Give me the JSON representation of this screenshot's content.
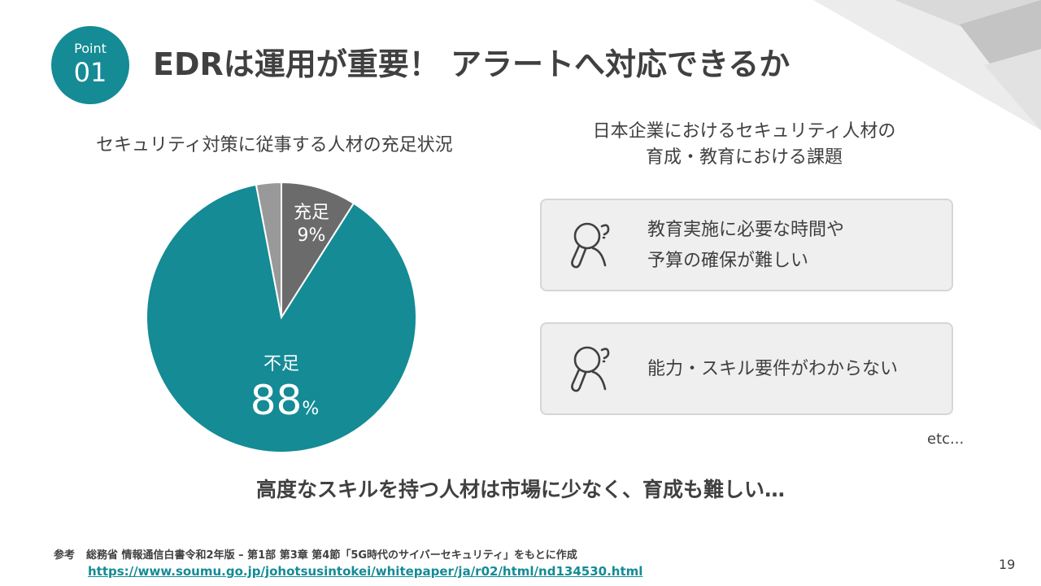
{
  "badge": {
    "label": "Point",
    "number": "01"
  },
  "title": "EDRは運用が重要！ アラートへ対応できるか",
  "chart": {
    "title": "セキュリティ対策に従事する人材の充足状況"
  },
  "chart_data": {
    "type": "pie",
    "title": "セキュリティ対策に従事する人材の充足状況",
    "slices": [
      {
        "name": "充足",
        "value": 9,
        "label": "9%",
        "color": "#6b6b6b"
      },
      {
        "name": "不足",
        "value": 88,
        "label": "88",
        "color": "#148b95"
      },
      {
        "name": "",
        "value": 3,
        "label": "",
        "color": "#999999"
      }
    ],
    "unit": "%"
  },
  "issues": {
    "title_line1": "日本企業におけるセキュリティ人材の",
    "title_line2": "育成・教育における課題",
    "items": [
      {
        "line1": "教育実施に必要な時間や",
        "line2": "予算の確保が難しい",
        "icon": "worried-person-icon"
      },
      {
        "line1": "能力・スキル要件がわからない",
        "icon": "worried-person-icon"
      }
    ],
    "etc": "etc..."
  },
  "summary": "高度なスキルを持つ人材は市場に少なく、育成も難しい…",
  "reference": {
    "label": "参考",
    "text": "総務省 情報通信白書令和2年版 – 第1部 第3章 第4節「5G時代のサイバーセキュリティ」をもとに作成",
    "url": "https://www.soumu.go.jp/johotsusintokei/whitepaper/ja/r02/html/nd134530.html"
  },
  "page_number": "19",
  "colors": {
    "accent": "#148b95",
    "text": "#404040",
    "card_bg": "#efefef"
  }
}
